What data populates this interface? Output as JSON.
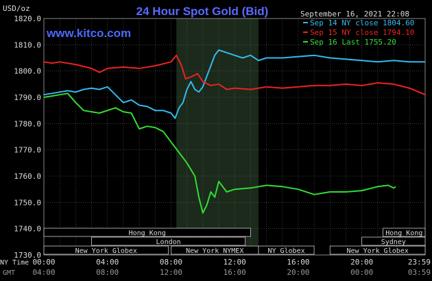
{
  "chart_data": {
    "type": "line",
    "title": "24 Hour Spot Gold (Bid)",
    "unit_label": "USD/oz",
    "watermark": "www.kitco.com",
    "timestamp": "September 16, 2021 22:08",
    "ylim": [
      1730,
      1820
    ],
    "yticks": [
      "1820.0",
      "1810.0",
      "1800.0",
      "1790.0",
      "1780.0",
      "1770.0",
      "1760.0",
      "1750.0",
      "1740.0",
      "1730.0"
    ],
    "xlim": [
      "00:00",
      "23:59"
    ],
    "x_tick_labels_ny": [
      "00:00",
      "04:00",
      "08:00",
      "12:00",
      "16:00",
      "20:00",
      "23:59"
    ],
    "x_tick_labels_gmt": [
      "04:00",
      "08:00",
      "12:00",
      "16:00",
      "20:00",
      "00:00",
      "03:59"
    ],
    "x_row_labels": {
      "ny": "NY Time",
      "gmt": "GMT"
    },
    "grid": true,
    "legend_position": "top-right",
    "highlight_window": [
      "08:20",
      "13:30"
    ],
    "sessions": [
      {
        "label": "Hong Kong",
        "start": "00:00",
        "end": "13:00",
        "row": 0
      },
      {
        "label": "Hong Kong",
        "start": "21:20",
        "end": "23:59",
        "row": 0
      },
      {
        "label": "London",
        "start": "03:00",
        "end": "12:40",
        "row": 1
      },
      {
        "label": "Sydney",
        "start": "20:00",
        "end": "23:59",
        "row": 1
      },
      {
        "label": "New York Globex",
        "start": "00:00",
        "end": "07:50",
        "row": 2
      },
      {
        "label": "New York NYMEX",
        "start": "08:00",
        "end": "13:30",
        "row": 2
      },
      {
        "label": "NY Globex",
        "start": "13:30",
        "end": "17:00",
        "row": 2
      },
      {
        "label": "New York Globex",
        "start": "18:00",
        "end": "23:59",
        "row": 2
      }
    ],
    "series": [
      {
        "name": "Sep 14 NY close 1804.60",
        "color": "#33bbee",
        "points": [
          [
            "00:00",
            1791
          ],
          [
            "00:30",
            1791.5
          ],
          [
            "01:00",
            1792
          ],
          [
            "01:30",
            1792.5
          ],
          [
            "02:00",
            1792
          ],
          [
            "02:30",
            1793
          ],
          [
            "03:00",
            1793.5
          ],
          [
            "03:30",
            1793
          ],
          [
            "04:00",
            1794
          ],
          [
            "04:30",
            1791
          ],
          [
            "05:00",
            1788
          ],
          [
            "05:30",
            1789
          ],
          [
            "06:00",
            1787
          ],
          [
            "06:30",
            1786.5
          ],
          [
            "07:00",
            1785
          ],
          [
            "07:30",
            1785
          ],
          [
            "08:00",
            1784
          ],
          [
            "08:15",
            1782
          ],
          [
            "08:30",
            1786
          ],
          [
            "08:45",
            1788
          ],
          [
            "09:00",
            1793
          ],
          [
            "09:15",
            1796
          ],
          [
            "09:30",
            1793
          ],
          [
            "09:45",
            1792
          ],
          [
            "10:00",
            1794
          ],
          [
            "10:15",
            1798
          ],
          [
            "10:30",
            1802
          ],
          [
            "10:45",
            1806
          ],
          [
            "11:00",
            1808
          ],
          [
            "11:30",
            1807
          ],
          [
            "12:00",
            1806
          ],
          [
            "12:30",
            1805
          ],
          [
            "13:00",
            1806
          ],
          [
            "13:30",
            1804
          ],
          [
            "14:00",
            1805
          ],
          [
            "15:00",
            1805
          ],
          [
            "16:00",
            1805.5
          ],
          [
            "17:00",
            1806
          ],
          [
            "18:00",
            1805
          ],
          [
            "19:00",
            1804.5
          ],
          [
            "20:00",
            1804
          ],
          [
            "21:00",
            1803.5
          ],
          [
            "22:00",
            1804
          ],
          [
            "23:00",
            1803.5
          ],
          [
            "23:59",
            1803.5
          ]
        ]
      },
      {
        "name": "Sep 15 NY close 1794.10",
        "color": "#ee2222",
        "points": [
          [
            "00:00",
            1803.5
          ],
          [
            "00:30",
            1803
          ],
          [
            "01:00",
            1803.5
          ],
          [
            "02:00",
            1802.5
          ],
          [
            "03:00",
            1801
          ],
          [
            "03:30",
            1799.5
          ],
          [
            "04:00",
            1801
          ],
          [
            "05:00",
            1801.5
          ],
          [
            "06:00",
            1801
          ],
          [
            "07:00",
            1802
          ],
          [
            "08:00",
            1803.5
          ],
          [
            "08:20",
            1806
          ],
          [
            "08:40",
            1802
          ],
          [
            "08:55",
            1797
          ],
          [
            "09:20",
            1798
          ],
          [
            "09:40",
            1799
          ],
          [
            "10:00",
            1796
          ],
          [
            "10:30",
            1794.5
          ],
          [
            "11:00",
            1795
          ],
          [
            "11:30",
            1793
          ],
          [
            "12:00",
            1793.5
          ],
          [
            "13:00",
            1793
          ],
          [
            "14:00",
            1794
          ],
          [
            "15:00",
            1793.5
          ],
          [
            "16:00",
            1794
          ],
          [
            "17:00",
            1794.5
          ],
          [
            "18:00",
            1794.5
          ],
          [
            "19:00",
            1795
          ],
          [
            "20:00",
            1794.5
          ],
          [
            "21:00",
            1795.5
          ],
          [
            "22:00",
            1795
          ],
          [
            "23:00",
            1793.5
          ],
          [
            "23:59",
            1791
          ]
        ]
      },
      {
        "name": "Sep 16 Last 1755.20",
        "color": "#33dd33",
        "points": [
          [
            "00:00",
            1790
          ],
          [
            "00:30",
            1790.5
          ],
          [
            "01:00",
            1791
          ],
          [
            "01:30",
            1791.5
          ],
          [
            "02:00",
            1788
          ],
          [
            "02:30",
            1785
          ],
          [
            "03:00",
            1784.5
          ],
          [
            "03:30",
            1784
          ],
          [
            "04:00",
            1785
          ],
          [
            "04:30",
            1786
          ],
          [
            "05:00",
            1784.5
          ],
          [
            "05:30",
            1784
          ],
          [
            "06:00",
            1778
          ],
          [
            "06:30",
            1779
          ],
          [
            "07:00",
            1778.5
          ],
          [
            "07:30",
            1777
          ],
          [
            "08:00",
            1773
          ],
          [
            "08:30",
            1769
          ],
          [
            "09:00",
            1765
          ],
          [
            "09:30",
            1760
          ],
          [
            "09:45",
            1752
          ],
          [
            "10:00",
            1746
          ],
          [
            "10:15",
            1749
          ],
          [
            "10:30",
            1754
          ],
          [
            "10:45",
            1752
          ],
          [
            "11:00",
            1758
          ],
          [
            "11:30",
            1754
          ],
          [
            "12:00",
            1755
          ],
          [
            "13:00",
            1755.5
          ],
          [
            "14:00",
            1756.5
          ],
          [
            "15:00",
            1756
          ],
          [
            "16:00",
            1755
          ],
          [
            "17:00",
            1753
          ],
          [
            "17:30",
            1753.5
          ],
          [
            "18:00",
            1754
          ],
          [
            "19:00",
            1754
          ],
          [
            "20:00",
            1754.5
          ],
          [
            "21:00",
            1756
          ],
          [
            "21:40",
            1756.5
          ],
          [
            "22:00",
            1755.5
          ],
          [
            "22:08",
            1756
          ]
        ]
      }
    ]
  }
}
